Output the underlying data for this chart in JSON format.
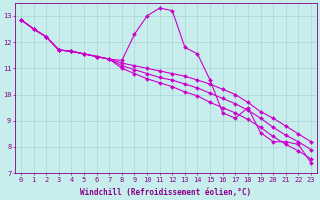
{
  "xlabel": "Windchill (Refroidissement éolien,°C)",
  "xlim": [
    -0.5,
    23.5
  ],
  "ylim": [
    7,
    13.5
  ],
  "xticks": [
    0,
    1,
    2,
    3,
    4,
    5,
    6,
    7,
    8,
    9,
    10,
    11,
    12,
    13,
    14,
    15,
    16,
    17,
    18,
    19,
    20,
    21,
    22,
    23
  ],
  "yticks": [
    7,
    8,
    9,
    10,
    11,
    12,
    13
  ],
  "background_color": "#c8eded",
  "grid_color": "#aad4d4",
  "line_color": "#cc00cc",
  "line1": [
    12.85,
    12.5,
    12.2,
    11.7,
    11.65,
    11.55,
    11.45,
    11.35,
    11.3,
    12.3,
    13.0,
    13.3,
    13.2,
    11.8,
    11.55,
    10.55,
    9.3,
    9.1,
    9.5,
    8.55,
    8.2,
    8.2,
    8.1,
    7.4
  ],
  "line2": [
    12.85,
    12.5,
    12.2,
    11.7,
    11.65,
    11.55,
    11.45,
    11.35,
    11.2,
    11.1,
    11.0,
    10.9,
    10.8,
    10.7,
    10.55,
    10.4,
    10.2,
    10.0,
    9.7,
    9.35,
    9.1,
    8.8,
    8.5,
    8.2
  ],
  "line3": [
    12.85,
    12.5,
    12.2,
    11.7,
    11.65,
    11.55,
    11.45,
    11.35,
    11.1,
    10.95,
    10.8,
    10.65,
    10.55,
    10.4,
    10.25,
    10.05,
    9.85,
    9.65,
    9.4,
    9.1,
    8.75,
    8.45,
    8.2,
    7.9
  ],
  "line4": [
    12.85,
    12.5,
    12.2,
    11.7,
    11.65,
    11.55,
    11.45,
    11.35,
    11.0,
    10.8,
    10.6,
    10.45,
    10.3,
    10.1,
    9.95,
    9.7,
    9.5,
    9.3,
    9.05,
    8.75,
    8.4,
    8.1,
    7.85,
    7.55
  ],
  "marker": "D",
  "markersize": 2.0,
  "linewidth": 0.8,
  "font_color": "#880088",
  "tick_fontsize": 5.0,
  "label_fontsize": 5.5,
  "figsize": [
    3.2,
    2.0
  ],
  "dpi": 100
}
